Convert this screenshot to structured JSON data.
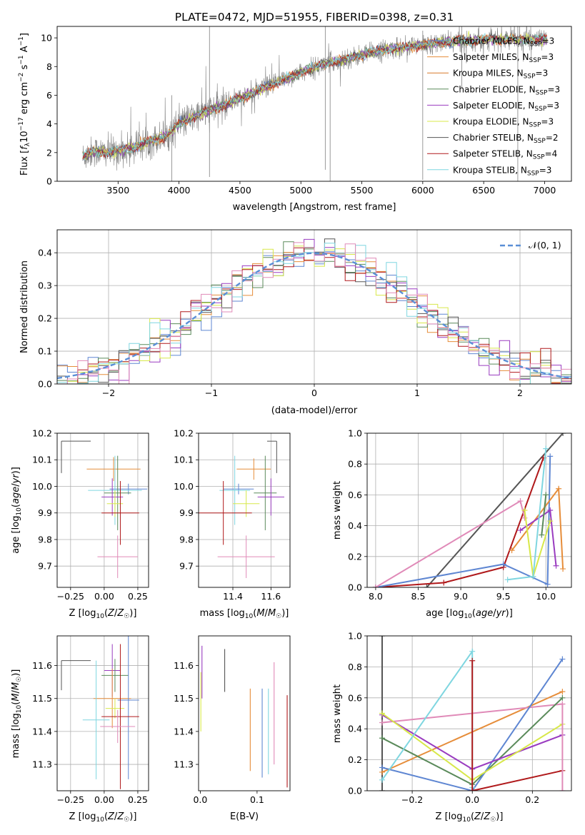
{
  "figure_title": "PLATE=0472, MJD=51955, FIBERID=0398, z=0.31",
  "colors": {
    "chabrier_miles": "#5e86d2",
    "salpeter_miles": "#e68d3a",
    "kroupa_miles": "#d87a2a",
    "chabrier_elodie": "#5a8a5a",
    "salpeter_elodie": "#9a3cc0",
    "kroupa_elodie": "#d8e84a",
    "chabrier_stelib": "#555555",
    "salpeter_stelib": "#b0191b",
    "kroupa_stelib": "#7fd6e0",
    "pink_model": "#e08ab8",
    "observed": "#808080",
    "gaussian": "#5b8fd6",
    "grid": "#b0b0b0"
  },
  "chart_data": [
    {
      "id": "spectrum",
      "type": "line",
      "title": "PLATE=0472, MJD=51955, FIBERID=0398, z=0.31",
      "xlabel": "wavelength [Angstrom, rest frame]",
      "ylabel": "Flux [f_λ 10^-17 erg cm^-2 s^-1 A^-1]",
      "xlim": [
        3000,
        7220
      ],
      "ylim": [
        0,
        10.8
      ],
      "xticks": [
        3500,
        4000,
        4500,
        5000,
        5500,
        6000,
        6500,
        7000
      ],
      "yticks": [
        0,
        2,
        4,
        6,
        8,
        10
      ],
      "grid": false,
      "legend_position": "right",
      "observed_continuum": {
        "x": [
          3210,
          3300,
          3400,
          3500,
          3600,
          3700,
          3800,
          3900,
          3950,
          4000,
          4100,
          4200,
          4300,
          4400,
          4500,
          4600,
          4700,
          4800,
          4900,
          5000,
          5100,
          5200,
          5300,
          5400,
          5500,
          5600,
          5700,
          5800,
          5900,
          6000,
          6100,
          6200,
          6300,
          6400,
          6500,
          6600,
          6700,
          6800,
          6900,
          7020
        ],
        "y": [
          1.7,
          2.1,
          2.0,
          2.1,
          2.3,
          2.6,
          2.9,
          3.2,
          3.6,
          4.0,
          4.4,
          4.8,
          5.1,
          5.4,
          5.8,
          6.1,
          6.5,
          6.9,
          7.2,
          7.6,
          7.9,
          8.2,
          8.4,
          8.6,
          8.8,
          9.0,
          9.2,
          9.3,
          9.4,
          9.5,
          9.6,
          9.7,
          9.8,
          9.8,
          9.9,
          9.9,
          9.9,
          9.9,
          9.9,
          9.9
        ]
      },
      "series_labels": [
        {
          "name": "Chabrier MILES",
          "n_ssp": 3,
          "color_key": "chabrier_miles"
        },
        {
          "name": "Salpeter MILES",
          "n_ssp": 3,
          "color_key": "salpeter_miles"
        },
        {
          "name": "Kroupa MILES",
          "n_ssp": 3,
          "color_key": "kroupa_miles"
        },
        {
          "name": "Chabrier ELODIE",
          "n_ssp": 3,
          "color_key": "chabrier_elodie"
        },
        {
          "name": "Salpeter ELODIE",
          "n_ssp": 3,
          "color_key": "salpeter_elodie"
        },
        {
          "name": "Kroupa ELODIE",
          "n_ssp": 3,
          "color_key": "kroupa_elodie"
        },
        {
          "name": "Chabrier STELIB",
          "n_ssp": 2,
          "color_key": "chabrier_stelib"
        },
        {
          "name": "Salpeter STELIB",
          "n_ssp": 4,
          "color_key": "salpeter_stelib"
        },
        {
          "name": "Kroupa STELIB",
          "n_ssp": 3,
          "color_key": "kroupa_stelib"
        }
      ]
    },
    {
      "id": "residuals",
      "type": "line",
      "xlabel": "(data-model)/error",
      "ylabel": "Normed distribution",
      "xlim": [
        -2.5,
        2.5
      ],
      "ylim": [
        0,
        0.47
      ],
      "xticks": [
        -2,
        -1,
        0,
        1,
        2
      ],
      "yticks": [
        0.0,
        0.1,
        0.2,
        0.3,
        0.4
      ],
      "grid": true,
      "legend_position": "top-right",
      "legend_label": "𝒩(0, 1)",
      "bin_width": 0.1
    },
    {
      "id": "age_vs_Z",
      "type": "scatter",
      "xlabel": "Z [log10(Z/Z☉)]",
      "ylabel": "age [log10(age/yr)]",
      "xlim": [
        -0.35,
        0.33
      ],
      "ylim": [
        9.62,
        10.2
      ],
      "xticks": [
        -0.25,
        0.0,
        0.25
      ],
      "xticklabels": [
        "−0.25",
        "0.00",
        "0.25"
      ],
      "yticks": [
        9.7,
        9.8,
        9.9,
        10.0,
        10.1,
        10.2
      ],
      "grid": true,
      "points": [
        {
          "x": -0.1,
          "y": 10.17,
          "xerr": 0.0,
          "yerr": 0.12,
          "color_key": "chabrier_stelib",
          "style": "corner"
        },
        {
          "x": 0.07,
          "y": 10.065,
          "xerr": 0.2,
          "yerr": 0.045,
          "color_key": "salpeter_miles"
        },
        {
          "x": 0.18,
          "y": 9.99,
          "xerr": 0.14,
          "yerr": 0.02,
          "color_key": "chabrier_miles"
        },
        {
          "x": 0.08,
          "y": 9.985,
          "xerr": 0.2,
          "yerr": 0.13,
          "color_key": "kroupa_stelib"
        },
        {
          "x": 0.1,
          "y": 9.975,
          "xerr": 0.1,
          "yerr": 0.14,
          "color_key": "chabrier_elodie"
        },
        {
          "x": 0.06,
          "y": 9.96,
          "xerr": 0.08,
          "yerr": 0.07,
          "color_key": "salpeter_elodie"
        },
        {
          "x": 0.08,
          "y": 9.935,
          "xerr": 0.06,
          "yerr": 0.05,
          "color_key": "kroupa_elodie"
        },
        {
          "x": 0.12,
          "y": 9.9,
          "xerr": 0.14,
          "yerr": 0.12,
          "color_key": "salpeter_stelib"
        },
        {
          "x": 0.1,
          "y": 9.735,
          "xerr": 0.15,
          "yerr": 0.08,
          "color_key": "pink_model"
        }
      ]
    },
    {
      "id": "age_vs_mass",
      "type": "scatter",
      "xlabel": "mass [log10(M/M☉)]",
      "ylabel": "",
      "xlim": [
        11.22,
        11.7
      ],
      "ylim": [
        9.62,
        10.2
      ],
      "xticks": [
        11.4,
        11.6
      ],
      "yticks": [
        9.7,
        9.8,
        9.9,
        10.0,
        10.1,
        10.2
      ],
      "grid": true,
      "points": [
        {
          "x": 11.63,
          "y": 10.17,
          "xerr": 0.0,
          "yerr": 0.12,
          "color_key": "chabrier_stelib",
          "style": "corner"
        },
        {
          "x": 11.51,
          "y": 10.065,
          "xerr": 0.09,
          "yerr": 0.04,
          "color_key": "salpeter_miles"
        },
        {
          "x": 11.43,
          "y": 9.99,
          "xerr": 0.08,
          "yerr": 0.02,
          "color_key": "chabrier_miles"
        },
        {
          "x": 11.41,
          "y": 9.985,
          "xerr": 0.08,
          "yerr": 0.13,
          "color_key": "kroupa_stelib"
        },
        {
          "x": 11.57,
          "y": 9.975,
          "xerr": 0.06,
          "yerr": 0.14,
          "color_key": "chabrier_elodie"
        },
        {
          "x": 11.6,
          "y": 9.96,
          "xerr": 0.07,
          "yerr": 0.07,
          "color_key": "salpeter_elodie"
        },
        {
          "x": 11.47,
          "y": 9.935,
          "xerr": 0.07,
          "yerr": 0.05,
          "color_key": "kroupa_elodie"
        },
        {
          "x": 11.35,
          "y": 9.9,
          "xerr": 0.15,
          "yerr": 0.12,
          "color_key": "salpeter_stelib"
        },
        {
          "x": 11.47,
          "y": 9.735,
          "xerr": 0.15,
          "yerr": 0.08,
          "color_key": "pink_model"
        }
      ]
    },
    {
      "id": "mass_weight_vs_age",
      "type": "line",
      "xlabel": "age [log10(age/yr)]",
      "ylabel": "mass weight",
      "xlim": [
        7.9,
        10.3
      ],
      "ylim": [
        0,
        1.0
      ],
      "xticks": [
        8.0,
        8.5,
        9.0,
        9.5,
        10.0
      ],
      "yticks": [
        0.0,
        0.2,
        0.4,
        0.6,
        0.8,
        1.0
      ],
      "grid": true,
      "series": [
        {
          "color_key": "chabrier_stelib",
          "x": [
            8.6,
            10.2
          ],
          "y": [
            0.0,
            1.0
          ]
        },
        {
          "color_key": "salpeter_stelib",
          "x": [
            8.0,
            8.8,
            9.5,
            9.97
          ],
          "y": [
            0.0,
            0.03,
            0.13,
            0.84
          ]
        },
        {
          "color_key": "chabrier_miles",
          "x": [
            8.0,
            9.5,
            10.02,
            10.05
          ],
          "y": [
            0.0,
            0.15,
            0.02,
            0.85
          ]
        },
        {
          "color_key": "pink_model",
          "x": [
            8.0,
            9.7,
            9.75
          ],
          "y": [
            0.0,
            0.56,
            0.45
          ]
        },
        {
          "color_key": "salpeter_miles",
          "x": [
            9.6,
            10.15,
            10.2
          ],
          "y": [
            0.24,
            0.64,
            0.12
          ]
        },
        {
          "color_key": "salpeter_elodie",
          "x": [
            9.7,
            10.05,
            10.12
          ],
          "y": [
            0.37,
            0.5,
            0.14
          ]
        },
        {
          "color_key": "kroupa_elodie",
          "x": [
            9.75,
            9.85,
            10.05
          ],
          "y": [
            0.5,
            0.07,
            0.43
          ]
        },
        {
          "color_key": "chabrier_elodie",
          "x": [
            9.95,
            10.0
          ],
          "y": [
            0.34,
            0.6
          ]
        },
        {
          "color_key": "kroupa_stelib",
          "x": [
            9.55,
            9.85,
            10.0
          ],
          "y": [
            0.05,
            0.07,
            0.9
          ]
        }
      ]
    },
    {
      "id": "mass_vs_Z",
      "type": "scatter",
      "xlabel": "Z [log10(Z/Z☉)]",
      "ylabel": "mass [log10(M/M☉)]",
      "xlim": [
        -0.35,
        0.33
      ],
      "ylim": [
        11.22,
        11.69
      ],
      "xticks": [
        -0.25,
        0.0,
        0.25
      ],
      "xticklabels": [
        "−0.25",
        "0.00",
        "0.25"
      ],
      "yticks": [
        11.3,
        11.4,
        11.5,
        11.6
      ],
      "grid": true,
      "points": [
        {
          "x": -0.1,
          "y": 11.615,
          "xerr": 0.0,
          "yerr": 0.09,
          "color_key": "chabrier_stelib",
          "style": "corner"
        },
        {
          "x": 0.06,
          "y": 11.585,
          "xerr": 0.06,
          "yerr": 0.08,
          "color_key": "salpeter_elodie"
        },
        {
          "x": 0.08,
          "y": 11.57,
          "xerr": 0.1,
          "yerr": 0.05,
          "color_key": "chabrier_elodie"
        },
        {
          "x": 0.06,
          "y": 11.5,
          "xerr": 0.14,
          "yerr": 0.09,
          "color_key": "salpeter_miles"
        },
        {
          "x": 0.18,
          "y": 11.495,
          "xerr": 0.08,
          "yerr": 0.24,
          "color_key": "chabrier_miles"
        },
        {
          "x": 0.08,
          "y": 11.47,
          "xerr": 0.07,
          "yerr": 0.03,
          "color_key": "kroupa_elodie"
        },
        {
          "x": 0.12,
          "y": 11.445,
          "xerr": 0.14,
          "yerr": 0.22,
          "color_key": "salpeter_stelib"
        },
        {
          "x": -0.06,
          "y": 11.435,
          "xerr": 0.1,
          "yerr": 0.18,
          "color_key": "kroupa_stelib"
        },
        {
          "x": 0.1,
          "y": 11.415,
          "xerr": 0.13,
          "yerr": 0.05,
          "color_key": "pink_model"
        }
      ]
    },
    {
      "id": "mass_vs_ebv",
      "type": "scatter",
      "xlabel": "E(B-V)",
      "ylabel": "",
      "xlim": [
        -0.003,
        0.158
      ],
      "ylim": [
        11.22,
        11.69
      ],
      "xticks": [
        0.0,
        0.1
      ],
      "xticklabels": [
        "0.0",
        "0.1"
      ],
      "yticks": [
        11.3,
        11.4,
        11.5,
        11.6
      ],
      "grid": false,
      "segments": [
        {
          "x": 0.003,
          "y0": 11.5,
          "y1": 11.66,
          "color_key": "salpeter_elodie"
        },
        {
          "x": 0.001,
          "y0": 11.4,
          "y1": 11.58,
          "color_key": "kroupa_elodie"
        },
        {
          "x": 0.043,
          "y0": 11.52,
          "y1": 11.65,
          "color_key": "chabrier_stelib"
        },
        {
          "x": 0.088,
          "y0": 11.28,
          "y1": 11.53,
          "color_key": "salpeter_miles"
        },
        {
          "x": 0.109,
          "y0": 11.26,
          "y1": 11.53,
          "color_key": "chabrier_miles"
        },
        {
          "x": 0.12,
          "y0": 11.27,
          "y1": 11.53,
          "color_key": "kroupa_stelib"
        },
        {
          "x": 0.13,
          "y0": 11.3,
          "y1": 11.61,
          "color_key": "pink_model"
        },
        {
          "x": 0.153,
          "y0": 11.23,
          "y1": 11.51,
          "color_key": "salpeter_stelib"
        }
      ]
    },
    {
      "id": "mass_weight_vs_Z",
      "type": "line",
      "xlabel": "Z [log10(Z/Z☉)]",
      "ylabel": "mass weight",
      "xlim": [
        -0.35,
        0.33
      ],
      "ylim": [
        0,
        1.0
      ],
      "xticks": [
        -0.2,
        0.0,
        0.2
      ],
      "xticklabels": [
        "−0.2",
        "0.0",
        "0.2"
      ],
      "yticks": [
        0.0,
        0.2,
        0.4,
        0.6,
        0.8,
        1.0
      ],
      "grid": true,
      "series": [
        {
          "color_key": "chabrier_stelib",
          "x": [
            -0.3,
            -0.3
          ],
          "y": [
            0.0,
            1.0
          ]
        },
        {
          "color_key": "salpeter_miles",
          "x": [
            -0.3,
            0.3
          ],
          "y": [
            0.12,
            0.64
          ]
        },
        {
          "color_key": "pink_model",
          "x": [
            -0.3,
            0.3
          ],
          "y": [
            0.44,
            0.56
          ]
        },
        {
          "color_key": "chabrier_elodie",
          "x": [
            -0.3,
            0.0,
            0.3
          ],
          "y": [
            0.34,
            0.04,
            0.6
          ]
        },
        {
          "color_key": "chabrier_miles",
          "x": [
            -0.3,
            0.0,
            0.3
          ],
          "y": [
            0.15,
            0.0,
            0.85
          ]
        },
        {
          "color_key": "salpeter_elodie",
          "x": [
            -0.3,
            0.0,
            0.3
          ],
          "y": [
            0.49,
            0.14,
            0.36
          ]
        },
        {
          "color_key": "kroupa_elodie",
          "x": [
            -0.3,
            0.0,
            0.3
          ],
          "y": [
            0.5,
            0.07,
            0.43
          ]
        },
        {
          "color_key": "kroupa_stelib",
          "x": [
            -0.3,
            0.0,
            0.0
          ],
          "y": [
            0.07,
            0.9,
            0.02
          ]
        },
        {
          "color_key": "salpeter_stelib",
          "x": [
            0.0,
            0.3
          ],
          "y": [
            0.0,
            0.13
          ]
        },
        {
          "color_key": "salpeter_stelib",
          "x": [
            0.0,
            0.0
          ],
          "y": [
            0.0,
            0.84
          ]
        },
        {
          "color_key": "pink_model",
          "x": [
            0.3,
            0.3
          ],
          "y": [
            0.0,
            0.56
          ]
        }
      ]
    }
  ]
}
